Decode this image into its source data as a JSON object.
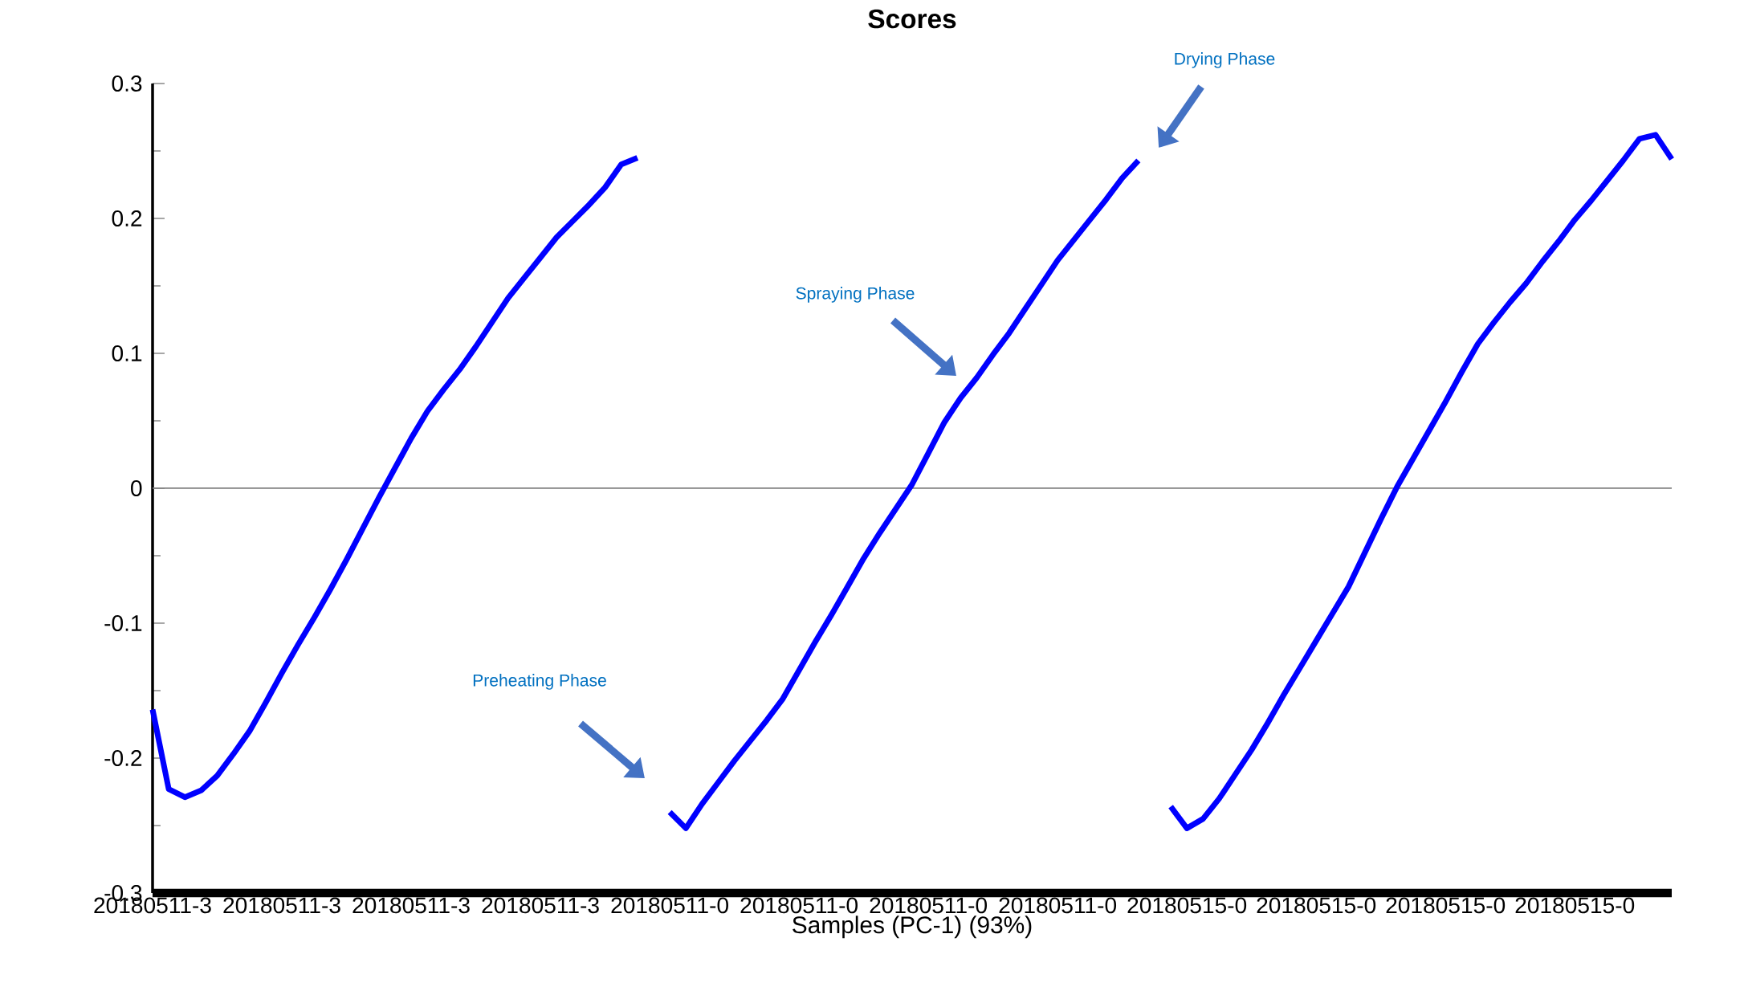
{
  "chart_data": {
    "type": "line",
    "title": "Scores",
    "xlabel": "Samples (PC-1) (93%)",
    "categories": [
      "20180511-3",
      null,
      null,
      null,
      null,
      null,
      null,
      null,
      "20180511-3",
      null,
      null,
      null,
      null,
      null,
      null,
      null,
      "20180511-3",
      null,
      null,
      null,
      null,
      null,
      null,
      null,
      "20180511-3",
      null,
      null,
      null,
      null,
      null,
      null,
      null,
      "20180511-0",
      null,
      null,
      null,
      null,
      null,
      null,
      null,
      "20180511-0",
      null,
      null,
      null,
      null,
      null,
      null,
      null,
      "20180511-0",
      null,
      null,
      null,
      null,
      null,
      null,
      null,
      "20180511-0",
      null,
      null,
      null,
      null,
      null,
      null,
      null,
      "20180515-0",
      null,
      null,
      null,
      null,
      null,
      null,
      null,
      "20180515-0",
      null,
      null,
      null,
      null,
      null,
      null,
      null,
      "20180515-0",
      null,
      null,
      null,
      null,
      null,
      null,
      null,
      "20180515-0",
      null,
      null,
      null,
      null,
      null,
      null
    ],
    "series": [
      {
        "color": "#0000ff",
        "values": [
          -0.164,
          -0.223,
          -0.229,
          -0.224,
          -0.213,
          -0.197,
          -0.18,
          -0.159,
          -0.137,
          -0.116,
          -0.096,
          -0.075,
          -0.053,
          -0.03,
          -0.007,
          0.015,
          0.037,
          0.057,
          0.073,
          0.088,
          0.105,
          0.123,
          0.141,
          0.156,
          0.171,
          0.186,
          0.198,
          0.21,
          0.223,
          0.24,
          0.245,
          null,
          -0.24,
          -0.252,
          -0.234,
          -0.218,
          -0.202,
          -0.187,
          -0.172,
          -0.156,
          -0.135,
          -0.114,
          -0.094,
          -0.073,
          -0.052,
          -0.033,
          -0.015,
          0.003,
          0.026,
          0.049,
          0.067,
          0.082,
          0.099,
          0.115,
          0.133,
          0.151,
          0.169,
          0.184,
          0.199,
          0.214,
          0.23,
          0.243,
          null,
          -0.236,
          -0.252,
          -0.245,
          -0.23,
          -0.212,
          -0.194,
          -0.174,
          -0.153,
          -0.133,
          -0.113,
          -0.093,
          -0.073,
          -0.048,
          -0.023,
          0.001,
          0.022,
          0.043,
          0.064,
          0.086,
          0.107,
          0.123,
          0.138,
          0.152,
          0.168,
          0.183,
          0.199,
          0.213,
          0.228,
          0.243,
          0.259,
          0.262,
          0.244
        ]
      }
    ],
    "ylim": [
      -0.3,
      0.3
    ],
    "yticks": [
      -0.3,
      -0.2,
      -0.1,
      0,
      0.1,
      0.2,
      0.3
    ],
    "ref_lines": [
      {
        "axis": "y",
        "value": 0,
        "color": "#808080"
      }
    ],
    "annotations": [
      "Preheating Phase",
      "Spraying Phase",
      "Drying Phase"
    ],
    "grid": false,
    "marker": "none",
    "line_style": "solid"
  }
}
